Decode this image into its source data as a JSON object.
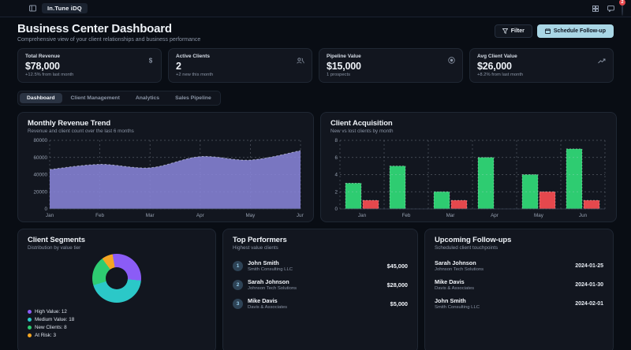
{
  "topbar": {
    "app_name": "In.Tune iDQ",
    "notification_count": "2"
  },
  "header": {
    "title": "Business Center Dashboard",
    "subtitle": "Comprehensive view of your client relationships and business performance",
    "filter_label": "Filter",
    "schedule_label": "Schedule Follow-up",
    "accent_color": "#a9d6e5"
  },
  "stats": [
    {
      "label": "Total Revenue",
      "value": "$78,000",
      "sub": "+12.5% from last month",
      "icon": "dollar-icon"
    },
    {
      "label": "Active Clients",
      "value": "2",
      "sub": "+2 new this month",
      "icon": "users-icon"
    },
    {
      "label": "Pipeline Value",
      "value": "$15,000",
      "sub": "1 prospects",
      "icon": "target-icon"
    },
    {
      "label": "Avg Client Value",
      "value": "$26,000",
      "sub": "+8.2% from last month",
      "icon": "trending-up-icon"
    }
  ],
  "tabs": [
    {
      "label": "Dashboard",
      "active": true
    },
    {
      "label": "Client Management",
      "active": false
    },
    {
      "label": "Analytics",
      "active": false
    },
    {
      "label": "Sales Pipeline",
      "active": false
    }
  ],
  "chart_data": [
    {
      "type": "area",
      "title": "Monthly Revenue Trend",
      "subtitle": "Revenue and client count over the last 6 months",
      "x": [
        "Jan",
        "Feb",
        "Mar",
        "Apr",
        "May",
        "Jun"
      ],
      "series": [
        {
          "name": "revenue",
          "values": [
            46000,
            52000,
            48000,
            61000,
            57000,
            68000
          ]
        }
      ],
      "ylim": [
        0,
        80000
      ],
      "yticks": [
        0,
        20000,
        40000,
        60000,
        80000
      ],
      "color": "#8884d8",
      "grid": true,
      "legend_position": "none"
    },
    {
      "type": "bar",
      "title": "Client Acquisition",
      "subtitle": "New vs lost clients by month",
      "categories": [
        "Jan",
        "Feb",
        "Mar",
        "Apr",
        "May",
        "Jun"
      ],
      "series": [
        {
          "name": "new clients",
          "values": [
            3,
            5,
            2,
            6,
            4,
            7
          ],
          "color": "#2ecc71"
        },
        {
          "name": "lost clients",
          "values": [
            1,
            0,
            1,
            0,
            2,
            1
          ],
          "color": "#e5484d"
        }
      ],
      "ylim": [
        0,
        8
      ],
      "yticks": [
        0,
        2,
        4,
        6,
        8
      ],
      "grid": true,
      "legend_position": "none"
    },
    {
      "type": "pie",
      "title": "Client Segments",
      "subtitle": "Distribution by value tier",
      "slices": [
        {
          "label": "High Value",
          "value": 12,
          "color": "#8b5cf6"
        },
        {
          "label": "Medium Value",
          "value": 18,
          "color": "#2bc8c8"
        },
        {
          "label": "New Clients",
          "value": 8,
          "color": "#2ecc71"
        },
        {
          "label": "At Risk",
          "value": 3,
          "color": "#f5a623"
        }
      ],
      "legend": [
        "High Value: 12",
        "Medium Value: 18",
        "New Clients: 8",
        "At Risk: 3"
      ],
      "legend_position": "bottom-left"
    }
  ],
  "top_performers": {
    "title": "Top Performers",
    "subtitle": "Highest value clients",
    "items": [
      {
        "rank": "1",
        "name": "John Smith",
        "company": "Smith Consulting LLC",
        "value": "$45,000"
      },
      {
        "rank": "2",
        "name": "Sarah Johnson",
        "company": "Johnson Tech Solutions",
        "value": "$28,000"
      },
      {
        "rank": "3",
        "name": "Mike Davis",
        "company": "Davis & Associates",
        "value": "$5,000"
      }
    ]
  },
  "followups": {
    "title": "Upcoming Follow-ups",
    "subtitle": "Scheduled client touchpoints",
    "items": [
      {
        "name": "Sarah Johnson",
        "company": "Johnson Tech Solutions",
        "date": "2024-01-25"
      },
      {
        "name": "Mike Davis",
        "company": "Davis & Associates",
        "date": "2024-01-30"
      },
      {
        "name": "John Smith",
        "company": "Smith Consulting LLC",
        "date": "2024-02-01"
      }
    ]
  }
}
